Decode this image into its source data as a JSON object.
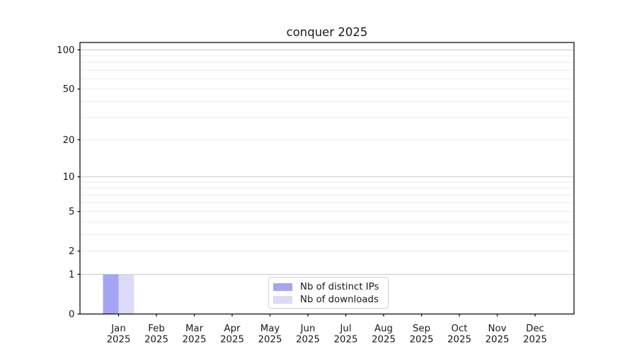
{
  "chart_data": {
    "type": "bar",
    "title": "conquer 2025",
    "x_categories": [
      "Jan",
      "Feb",
      "Mar",
      "Apr",
      "May",
      "Jun",
      "Jul",
      "Aug",
      "Sep",
      "Oct",
      "Nov",
      "Dec"
    ],
    "x_year": "2025",
    "series": [
      {
        "name": "Nb of distinct IPs",
        "color": "#a5a5f3",
        "values": [
          1,
          0,
          0,
          0,
          0,
          0,
          0,
          0,
          0,
          0,
          0,
          0
        ]
      },
      {
        "name": "Nb of downloads",
        "color": "#dbdbf8",
        "values": [
          1,
          0,
          0,
          0,
          0,
          0,
          0,
          0,
          0,
          0,
          0,
          0
        ]
      }
    ],
    "y_scale": "log10(1+x)",
    "ylim": [
      0,
      114
    ],
    "y_tick_values": [
      0,
      1,
      2,
      5,
      10,
      20,
      50,
      100
    ],
    "y_tick_labels": [
      "0",
      "1",
      "2",
      "5",
      "10",
      "20",
      "50",
      "100"
    ],
    "grid": "horizontal",
    "grid_major_values": [
      1,
      10,
      100
    ],
    "grid_minor_values": [
      2,
      3,
      4,
      5,
      6,
      7,
      8,
      9,
      20,
      30,
      40,
      50,
      60,
      70,
      80,
      90
    ],
    "legend_position": "inside-bottom-center",
    "colors": {
      "background": "#ffffff",
      "grid_major": "#c9c9c9",
      "grid_minor": "#ececec",
      "spine": "#000000",
      "text": "#1a1a1a"
    }
  }
}
